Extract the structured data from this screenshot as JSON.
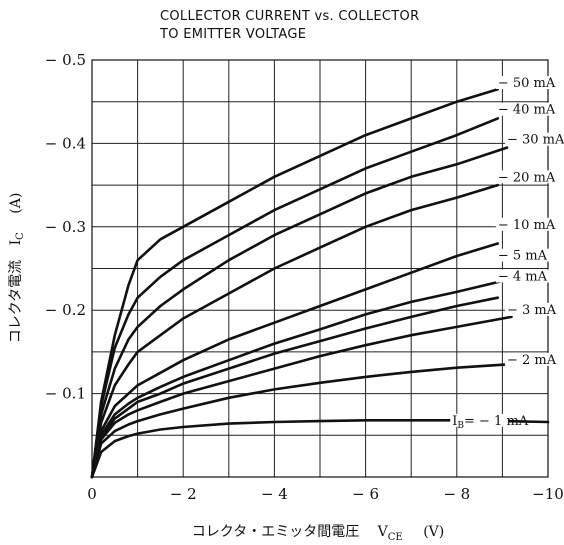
{
  "chart_data": {
    "type": "line",
    "title_lines": [
      "COLLECTOR CURRENT vs. COLLECTOR",
      "TO EMITTER VOLTAGE"
    ],
    "xlabel": "コレクタ・エミッタ間電圧",
    "xlabel_symbol": "V",
    "xlabel_subscript": "CE",
    "xlabel_unit": "(V)",
    "ylabel": "コレクタ電流",
    "ylabel_symbol": "I",
    "ylabel_subscript": "C",
    "ylabel_unit": "(A)",
    "xlim": [
      0,
      -10
    ],
    "ylim": [
      0,
      -0.5
    ],
    "x_ticks": [
      {
        "value": 0,
        "label": "0"
      },
      {
        "value": -2,
        "label": "− 2"
      },
      {
        "value": -4,
        "label": "− 4"
      },
      {
        "value": -6,
        "label": "− 6"
      },
      {
        "value": -8,
        "label": "− 8"
      },
      {
        "value": -10,
        "label": "−10"
      }
    ],
    "y_ticks": [
      {
        "value": -0.1,
        "label": "− 0.1"
      },
      {
        "value": -0.2,
        "label": "− 0.2"
      },
      {
        "value": -0.3,
        "label": "− 0.3"
      },
      {
        "value": -0.4,
        "label": "− 0.4"
      },
      {
        "value": -0.5,
        "label": "− 0.5"
      }
    ],
    "grid": true,
    "series": [
      {
        "name": "50 mA",
        "x": [
          0,
          -0.2,
          -0.5,
          -0.8,
          -1.0,
          -1.5,
          -2,
          -3,
          -4,
          -5,
          -6,
          -7,
          -8,
          -8.9
        ],
        "y": [
          0,
          -0.09,
          -0.17,
          -0.23,
          -0.26,
          -0.285,
          -0.3,
          -0.33,
          -0.36,
          -0.385,
          -0.41,
          -0.43,
          -0.45,
          -0.465
        ]
      },
      {
        "name": "40 mA",
        "x": [
          0,
          -0.2,
          -0.5,
          -0.8,
          -1.0,
          -1.5,
          -2,
          -3,
          -4,
          -5,
          -6,
          -7,
          -8,
          -8.9
        ],
        "y": [
          0,
          -0.085,
          -0.155,
          -0.195,
          -0.215,
          -0.24,
          -0.26,
          -0.29,
          -0.32,
          -0.345,
          -0.37,
          -0.39,
          -0.41,
          -0.43
        ]
      },
      {
        "name": "30 mA",
        "x": [
          0,
          -0.2,
          -0.5,
          -0.8,
          -1.0,
          -1.5,
          -2,
          -3,
          -4,
          -5,
          -6,
          -7,
          -8,
          -9.1
        ],
        "y": [
          0,
          -0.075,
          -0.13,
          -0.165,
          -0.18,
          -0.205,
          -0.225,
          -0.26,
          -0.29,
          -0.315,
          -0.34,
          -0.36,
          -0.375,
          -0.395
        ]
      },
      {
        "name": "20 mA",
        "x": [
          0,
          -0.2,
          -0.5,
          -0.8,
          -1.0,
          -1.5,
          -2,
          -3,
          -4,
          -5,
          -6,
          -7,
          -8,
          -8.9
        ],
        "y": [
          0,
          -0.065,
          -0.11,
          -0.135,
          -0.15,
          -0.17,
          -0.19,
          -0.22,
          -0.25,
          -0.275,
          -0.3,
          -0.32,
          -0.335,
          -0.35
        ]
      },
      {
        "name": "10 mA",
        "x": [
          0,
          -0.2,
          -0.5,
          -0.8,
          -1.0,
          -1.5,
          -2,
          -3,
          -4,
          -5,
          -6,
          -7,
          -8,
          -8.9
        ],
        "y": [
          0,
          -0.055,
          -0.085,
          -0.1,
          -0.11,
          -0.125,
          -0.14,
          -0.165,
          -0.185,
          -0.205,
          -0.225,
          -0.245,
          -0.265,
          -0.28
        ]
      },
      {
        "name": "5 mA",
        "x": [
          0,
          -0.2,
          -0.5,
          -0.8,
          -1.0,
          -1.5,
          -2,
          -3,
          -4,
          -5,
          -6,
          -7,
          -8,
          -9.0
        ],
        "y": [
          0,
          -0.05,
          -0.075,
          -0.088,
          -0.095,
          -0.108,
          -0.12,
          -0.14,
          -0.16,
          -0.177,
          -0.195,
          -0.21,
          -0.222,
          -0.235
        ]
      },
      {
        "name": "4 mA",
        "x": [
          0,
          -0.2,
          -0.5,
          -0.8,
          -1.0,
          -1.5,
          -2,
          -3,
          -4,
          -5,
          -6,
          -7,
          -8,
          -8.9
        ],
        "y": [
          0,
          -0.048,
          -0.07,
          -0.082,
          -0.09,
          -0.1,
          -0.112,
          -0.13,
          -0.148,
          -0.163,
          -0.178,
          -0.192,
          -0.205,
          -0.215
        ]
      },
      {
        "name": "3 mA",
        "x": [
          0,
          -0.2,
          -0.5,
          -0.8,
          -1.0,
          -1.5,
          -2,
          -3,
          -4,
          -5,
          -6,
          -7,
          -8,
          -9.2
        ],
        "y": [
          0,
          -0.045,
          -0.065,
          -0.075,
          -0.08,
          -0.09,
          -0.1,
          -0.115,
          -0.13,
          -0.145,
          -0.158,
          -0.17,
          -0.18,
          -0.192
        ]
      },
      {
        "name": "2 mA",
        "x": [
          0,
          -0.2,
          -0.5,
          -0.8,
          -1.0,
          -1.5,
          -2,
          -3,
          -4,
          -5,
          -6,
          -7,
          -8,
          -9.1
        ],
        "y": [
          0,
          -0.04,
          -0.055,
          -0.063,
          -0.067,
          -0.075,
          -0.082,
          -0.095,
          -0.105,
          -0.113,
          -0.12,
          -0.126,
          -0.131,
          -0.135
        ]
      },
      {
        "name": "I_B = −1 mA",
        "x": [
          0,
          -0.2,
          -0.5,
          -0.8,
          -1.0,
          -1.5,
          -2,
          -3,
          -4,
          -5,
          -6,
          -7,
          -8,
          -9,
          -10
        ],
        "y": [
          0,
          -0.03,
          -0.043,
          -0.049,
          -0.052,
          -0.057,
          -0.06,
          -0.064,
          -0.066,
          -0.067,
          -0.068,
          -0.068,
          -0.068,
          -0.067,
          -0.066
        ]
      }
    ],
    "curve_labels": [
      {
        "text": "50 mA",
        "x": -8.9,
        "y": -0.47
      },
      {
        "text": "40 mA",
        "x": -8.9,
        "y": -0.438
      },
      {
        "text": "30 mA",
        "x": -9.1,
        "y": -0.402
      },
      {
        "text": "20 mA",
        "x": -8.9,
        "y": -0.357
      },
      {
        "text": "10 mA",
        "x": -8.9,
        "y": -0.3
      },
      {
        "text": "5 mA",
        "x": -8.9,
        "y": -0.263
      },
      {
        "text": "4 mA",
        "x": -8.9,
        "y": -0.238
      },
      {
        "text": "3 mA",
        "x": -9.1,
        "y": -0.198
      },
      {
        "text": "2 mA",
        "x": -9.1,
        "y": -0.138
      },
      {
        "text": "= − 1 mA",
        "x": -7.9,
        "y": -0.065,
        "prefix": "I",
        "prefix_sub": "B"
      }
    ]
  }
}
